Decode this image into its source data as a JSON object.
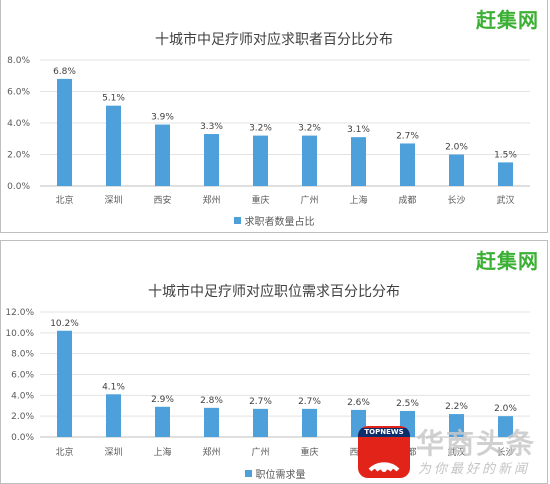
{
  "chart_data": [
    {
      "type": "bar",
      "title": "十城市中足疗师对应求职者百分比分布",
      "categories": [
        "北京",
        "深圳",
        "西安",
        "郑州",
        "重庆",
        "广州",
        "上海",
        "成都",
        "长沙",
        "武汉"
      ],
      "series": [
        {
          "name": "求职者数量占比",
          "values": [
            6.8,
            5.1,
            3.9,
            3.3,
            3.2,
            3.2,
            3.1,
            2.7,
            2.0,
            1.5
          ]
        }
      ],
      "data_labels": [
        "6.8%",
        "5.1%",
        "3.9%",
        "3.3%",
        "3.2%",
        "3.2%",
        "3.1%",
        "2.7%",
        "2.0%",
        "1.5%"
      ],
      "yticks": [
        "0.0%",
        "2.0%",
        "4.0%",
        "6.0%",
        "8.0%"
      ],
      "ylim": [
        0,
        8
      ],
      "grid": true,
      "legend": "bottom",
      "color": "#4ea0db"
    },
    {
      "type": "bar",
      "title": "十城市中足疗师对应职位需求百分比分布",
      "categories": [
        "北京",
        "深圳",
        "上海",
        "郑州",
        "广州",
        "重庆",
        "西安",
        "成都",
        "武汉",
        "长沙"
      ],
      "series": [
        {
          "name": "职位需求量",
          "values": [
            10.2,
            4.1,
            2.9,
            2.8,
            2.7,
            2.7,
            2.6,
            2.5,
            2.2,
            2.0
          ]
        }
      ],
      "data_labels": [
        "10.2%",
        "4.1%",
        "2.9%",
        "2.8%",
        "2.7%",
        "2.7%",
        "2.6%",
        "2.5%",
        "2.2%",
        "2.0%"
      ],
      "yticks": [
        "0.0%",
        "2.0%",
        "4.0%",
        "6.0%",
        "8.0%",
        "10.0%",
        "12.0%"
      ],
      "ylim": [
        0,
        12
      ],
      "grid": true,
      "legend": "bottom",
      "color": "#4ea0db"
    }
  ],
  "brand": "赶集网",
  "watermark": {
    "badge": "TOPNEWS",
    "name": "华商头条",
    "slogan": "为你最好的新闻"
  }
}
